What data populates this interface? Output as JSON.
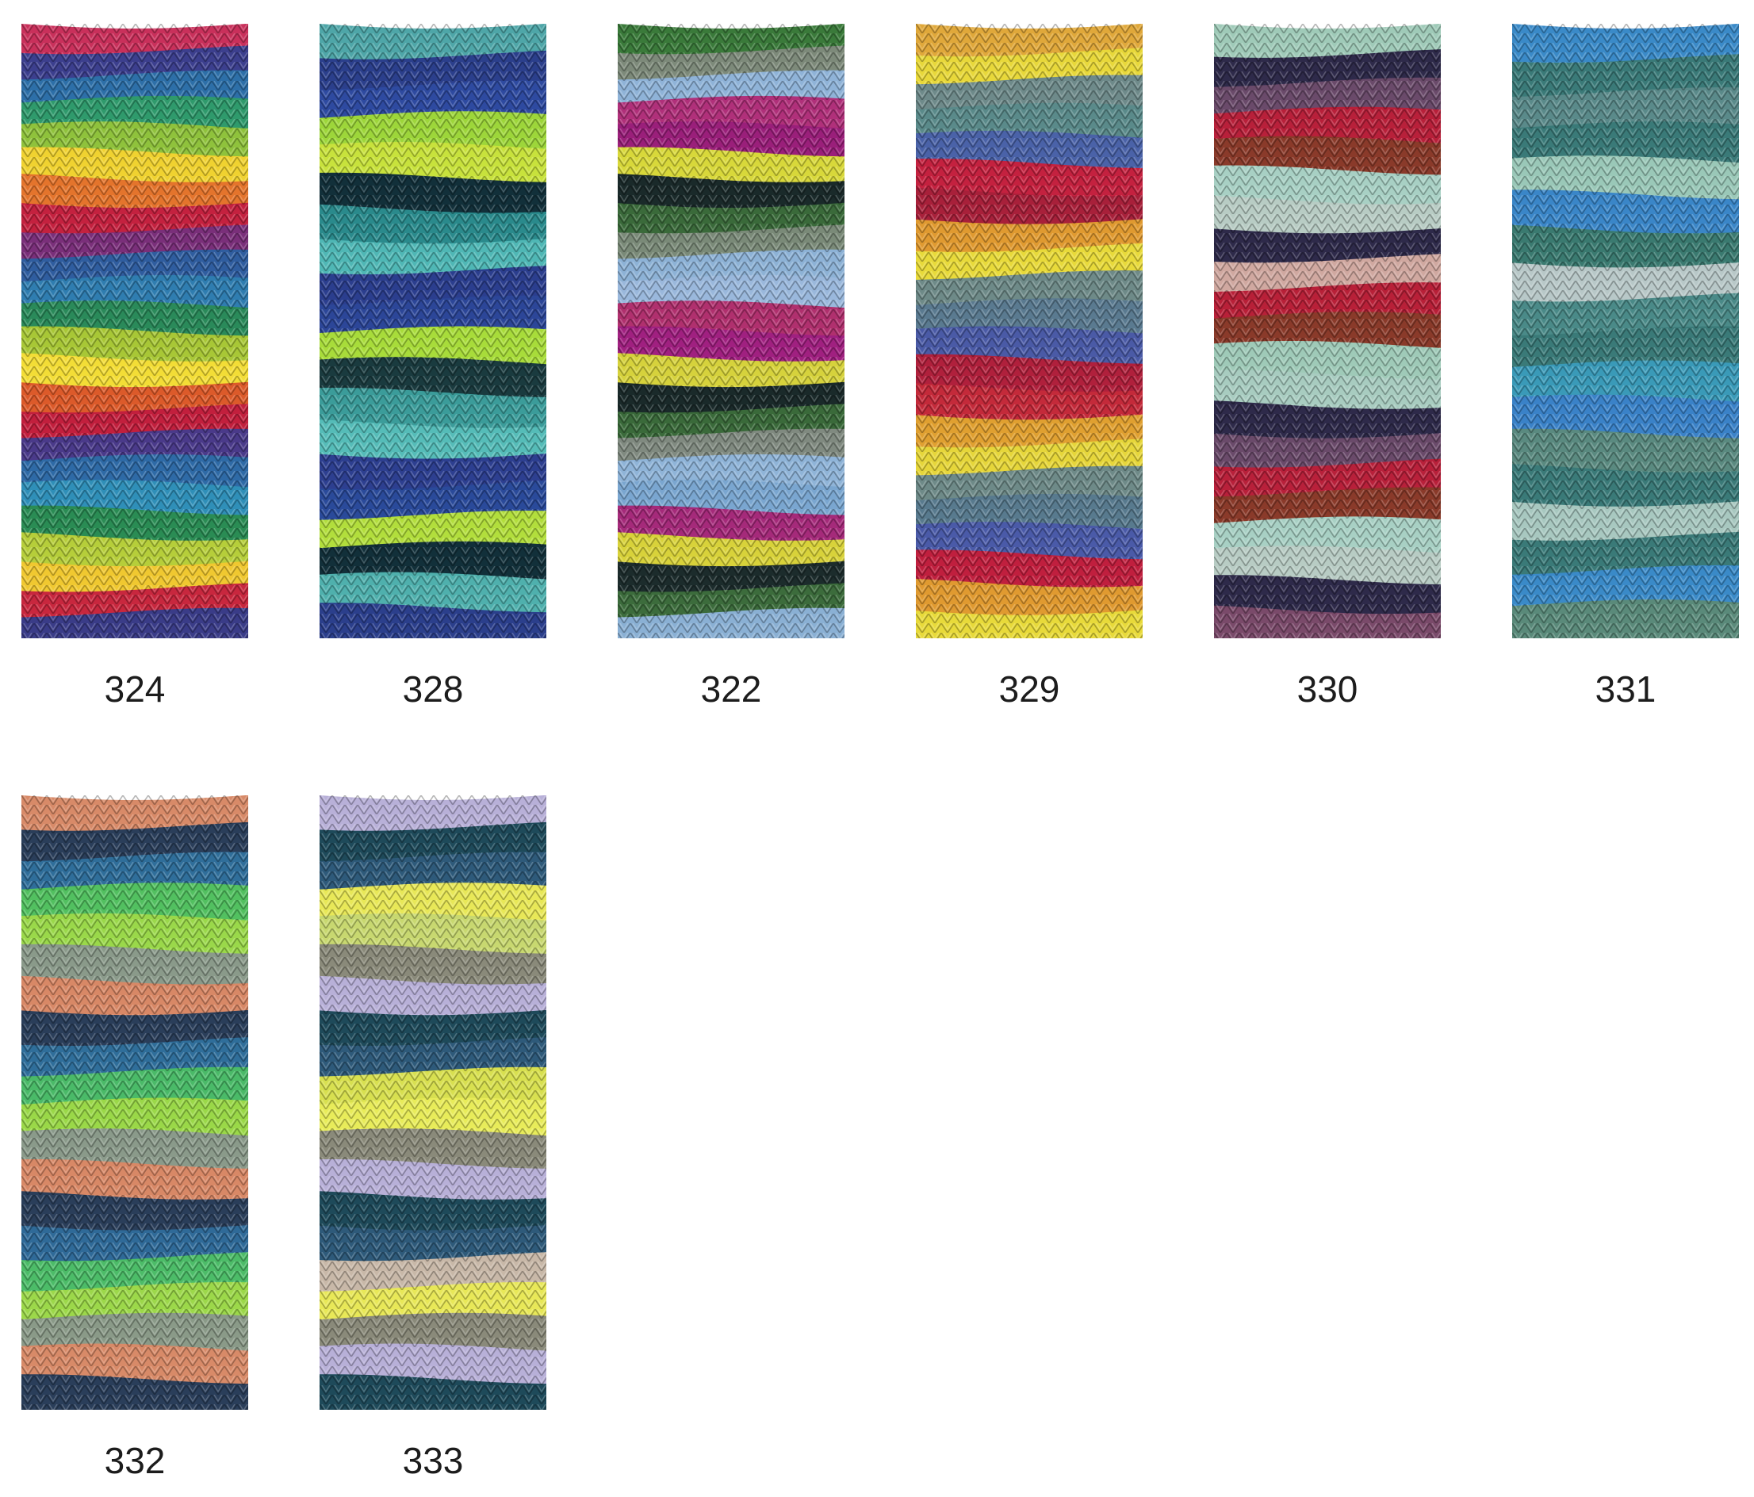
{
  "swatches": [
    {
      "code": "324",
      "colors": [
        "#c9305b",
        "#3c3f8e",
        "#2d6fa8",
        "#2f9a6c",
        "#8fc23c",
        "#f0d230",
        "#e4742c",
        "#c4213f",
        "#7a2f7a",
        "#2f5d9f",
        "#2f7db0",
        "#2a8a5a",
        "#a8c736",
        "#f3dd36",
        "#dc5a2a",
        "#c21f3d",
        "#4a3a8a",
        "#2e6aa6",
        "#2f8fb8",
        "#2a8c54",
        "#b6ce3a",
        "#f0c830",
        "#c8273e",
        "#3a3c88"
      ]
    },
    {
      "code": "328",
      "colors": [
        "#4ea6a8",
        "#2b3f8c",
        "#2e4aa0",
        "#9dd63a",
        "#c8e23c",
        "#12303a",
        "#2a8a8c",
        "#4fb7b5",
        "#2b3e8e",
        "#2c4698",
        "#a8dc3a",
        "#1a3b3f",
        "#3b9c9a",
        "#55bcb8",
        "#2d3f90",
        "#2a4a9a",
        "#b2de3c",
        "#12303a",
        "#4fb0ad",
        "#2b3f8c"
      ]
    },
    {
      "code": "322",
      "colors": [
        "#3a7a3a",
        "#7d8a7a",
        "#8fb3d8",
        "#b0307a",
        "#9a1f7a",
        "#d8d83a",
        "#1a2a2a",
        "#3a6a3a",
        "#7a8a78",
        "#8db2d6",
        "#9ab8dc",
        "#b0306e",
        "#a02080",
        "#d6d23c",
        "#1a2a2a",
        "#3a6a3a",
        "#808a80",
        "#8fb4d8",
        "#7aa6d0",
        "#a52a7a",
        "#d8d23a",
        "#1c2c2c",
        "#3c6c3c",
        "#8ab0d4"
      ]
    },
    {
      "code": "329",
      "colors": [
        "#e0a83a",
        "#e8d83a",
        "#6e8a8a",
        "#5a8a8a",
        "#4a62a8",
        "#c4213f",
        "#a8203a",
        "#e09a30",
        "#e8da3a",
        "#6e8a88",
        "#5a7a90",
        "#4a5aa6",
        "#b0203c",
        "#c42a3a",
        "#e0a030",
        "#e6d63a",
        "#6e8a88",
        "#587a8e",
        "#4a5aa8",
        "#c01f3e",
        "#e09a30",
        "#e8da3a"
      ]
    },
    {
      "code": "330",
      "colors": [
        "#9fcab8",
        "#2e2a4a",
        "#6a4a6a",
        "#b8203a",
        "#8a3a2a",
        "#a8d0c4",
        "#b8ccc4",
        "#2e2a4a",
        "#d0a8a0",
        "#b82038",
        "#8a3a2a",
        "#9fcab8",
        "#a8ccc0",
        "#2e2a4a",
        "#6a4a6a",
        "#b8203a",
        "#8a3a2a",
        "#a8d0c4",
        "#b8ccc4",
        "#2e2a4a",
        "#7a4a6a"
      ]
    },
    {
      "code": "331",
      "colors": [
        "#3a8ac8",
        "#3a7a78",
        "#5a8a8a",
        "#3a7a78",
        "#9ac8b8",
        "#3a86c8",
        "#3a7a70",
        "#b8c8c8",
        "#4a8a88",
        "#3a7a78",
        "#3a9ab8",
        "#3a82c8",
        "#5a8a80",
        "#3a7a78",
        "#a8c8c0",
        "#3a7a78",
        "#3a8ac8",
        "#5a8a7a"
      ]
    },
    {
      "code": "332",
      "colors": [
        "#d88a68",
        "#2a3e5a",
        "#2f6e9a",
        "#52c060",
        "#9ad84a",
        "#8a9a8a",
        "#d88866",
        "#2a3e5a",
        "#2f6e9a",
        "#4aba68",
        "#9ad848",
        "#8a9a8a",
        "#d88866",
        "#2a3e5a",
        "#2f6a98",
        "#4cbc68",
        "#9cd84a",
        "#8a9a88",
        "#d88a68",
        "#2a3e5a"
      ]
    },
    {
      "code": "333",
      "colors": [
        "#b8b0d8",
        "#1e4a5a",
        "#2e5a7a",
        "#e8e858",
        "#c8d870",
        "#8a8a7a",
        "#b8b0d8",
        "#1e4a5a",
        "#2e5a7a",
        "#d8e050",
        "#e8ec5a",
        "#8a8a7a",
        "#b8b0d8",
        "#1e4a5a",
        "#2e5a7a",
        "#c8b8a8",
        "#e8e858",
        "#8a8a7a",
        "#b8b0d8",
        "#1e4a5a"
      ]
    }
  ]
}
